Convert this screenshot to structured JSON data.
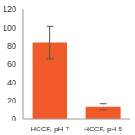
{
  "chart_data": {
    "type": "bar",
    "categories": [
      "HCCF, pH 7",
      "HCCF, pH 5"
    ],
    "values": [
      83,
      13
    ],
    "errors": [
      18,
      3
    ],
    "color": "#f05a28",
    "ylim": [
      0,
      120
    ],
    "yticks": [
      0,
      20,
      40,
      60,
      80,
      100,
      120
    ],
    "grid": false
  }
}
